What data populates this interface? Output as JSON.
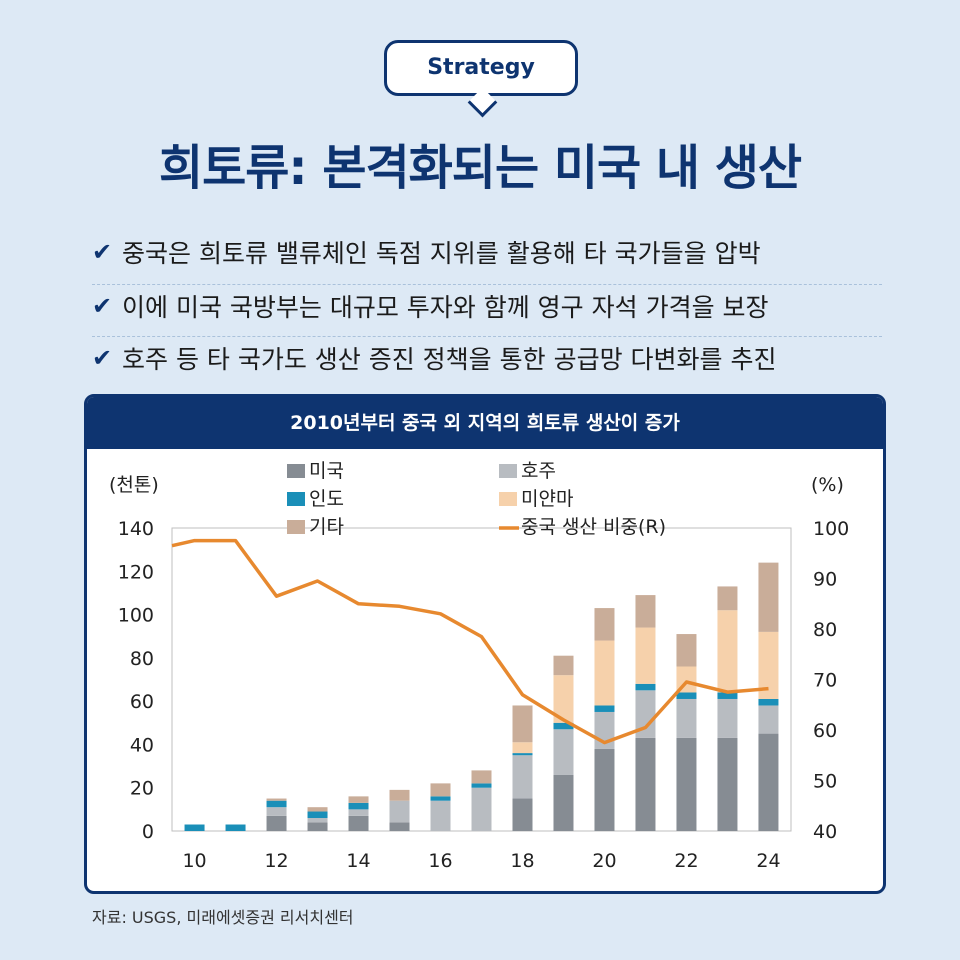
{
  "badge": "Strategy",
  "headline": "희토류: 본격화되는 미국 내 생산",
  "bullets": [
    "중국은 희토류 밸류체인 독점 지위를 활용해 타 국가들을 압박",
    "이에 미국 국방부는 대규모 투자와 함께 영구 자석 가격을 보장",
    "호주 등 타 국가도 생산 증진 정책을 통한 공급망 다변화를 추진"
  ],
  "check_icon": "check-icon",
  "chart_header": "2010년부터 중국 외 지역의 희토류 생산이 증가",
  "source": "자료: USGS, 미래에셋증권 리서치센터",
  "colors": {
    "navy": "#0e3470",
    "us": "#868c93",
    "australia": "#b8bcc1",
    "india": "#1a8fb8",
    "myanmar": "#f6d1ab",
    "other": "#c9ad99",
    "china_share": "#e7892f"
  },
  "chart_data": {
    "type": "bar",
    "stacked": true,
    "categories": [
      "10",
      "11",
      "12",
      "13",
      "14",
      "15",
      "16",
      "17",
      "18",
      "19",
      "20",
      "21",
      "22",
      "23",
      "24"
    ],
    "x_tick_labels": [
      "10",
      "12",
      "14",
      "16",
      "18",
      "20",
      "22",
      "24"
    ],
    "ylabel": "(천톤)",
    "y2label": "(%)",
    "ylim": [
      0,
      140
    ],
    "y_ticks": [
      0,
      20,
      40,
      60,
      80,
      100,
      120,
      140
    ],
    "y2lim": [
      40,
      100
    ],
    "y2_ticks": [
      40,
      50,
      60,
      70,
      80,
      90,
      100
    ],
    "series": [
      {
        "name": "미국",
        "key": "us",
        "values": [
          0,
          0,
          7,
          4,
          7,
          4,
          0,
          0,
          15,
          26,
          38,
          43,
          43,
          43,
          45
        ]
      },
      {
        "name": "호주",
        "key": "australia",
        "values": [
          0,
          0,
          4,
          2,
          3,
          10,
          14,
          20,
          20,
          21,
          17,
          22,
          18,
          18,
          13
        ]
      },
      {
        "name": "인도",
        "key": "india",
        "values": [
          3,
          3,
          3,
          3,
          3,
          0,
          2,
          2,
          1,
          3,
          3,
          3,
          3,
          3,
          3
        ]
      },
      {
        "name": "미얀마",
        "key": "myanmar",
        "values": [
          0,
          0,
          0,
          0,
          0,
          0,
          0,
          0,
          5,
          22,
          30,
          26,
          12,
          38,
          31
        ]
      },
      {
        "name": "기타",
        "key": "other",
        "values": [
          0,
          0,
          1,
          2,
          3,
          5,
          6,
          6,
          17,
          9,
          15,
          15,
          15,
          11,
          32
        ]
      }
    ],
    "line_series": {
      "name": "중국 생산 비중(R)",
      "key": "china_share",
      "values": [
        96.5,
        97.5,
        97.5,
        86.5,
        89.5,
        85,
        84.5,
        83,
        78.5,
        67,
        62,
        57.5,
        60.5,
        69.5,
        67.5,
        68.2
      ]
    },
    "line_x": [
      9.45,
      10,
      11,
      12,
      13,
      14,
      15,
      16,
      17,
      18,
      19,
      20,
      21,
      22,
      23,
      24
    ],
    "legend_position": "top"
  }
}
